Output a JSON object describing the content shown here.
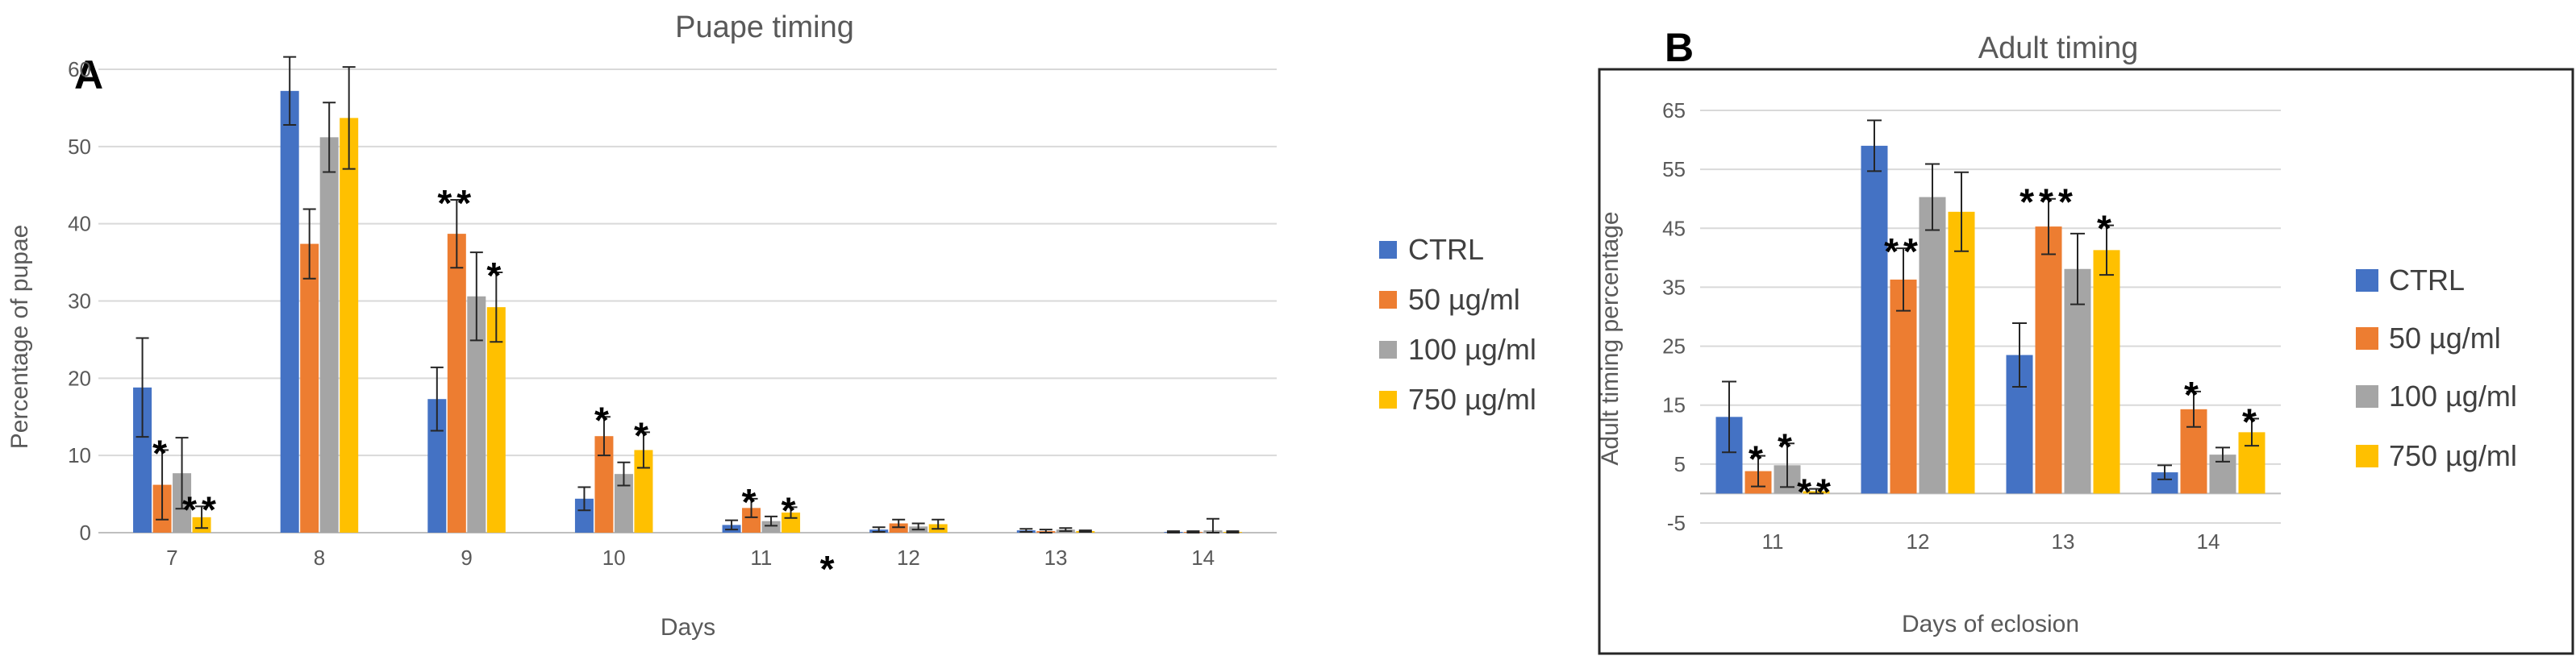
{
  "panels": {
    "a": {
      "label": "A",
      "title": "Puape timing",
      "xlabel": "Days",
      "ylabel": "Percentage of pupae"
    },
    "b": {
      "label": "B",
      "title": "Adult timing",
      "xlabel": "Days of eclosion",
      "ylabel": "Adult timing percentage"
    }
  },
  "legend": [
    "CTRL",
    "50 µg/ml",
    "100 µg/ml",
    "750 µg/ml"
  ],
  "colors": [
    "#4472C4",
    "#ED7D31",
    "#A5A5A5",
    "#FFC000"
  ],
  "chart_data": [
    {
      "type": "bar",
      "title": "Puape timing",
      "xlabel": "Days",
      "ylabel": "Percentage of pupae",
      "categories": [
        "7",
        "8",
        "9",
        "10",
        "11",
        "12",
        "13",
        "14"
      ],
      "ylim": [
        0,
        60
      ],
      "yticks": [
        0,
        10,
        20,
        30,
        40,
        50,
        60
      ],
      "grid": true,
      "legend_position": "right",
      "series": [
        {
          "name": "CTRL",
          "values": [
            18.8,
            57.2,
            17.3,
            4.4,
            1.0,
            0.4,
            0.3,
            0.1
          ],
          "errors": [
            6.4,
            4.4,
            4.1,
            1.5,
            0.6,
            0.3,
            0.2,
            0.1
          ]
        },
        {
          "name": "50 µg/ml",
          "values": [
            6.2,
            37.4,
            38.7,
            12.5,
            3.2,
            1.2,
            0.2,
            0.1
          ],
          "errors": [
            4.5,
            4.5,
            4.4,
            2.5,
            1.2,
            0.5,
            0.2,
            0.1
          ]
        },
        {
          "name": "100 µg/ml",
          "values": [
            7.7,
            51.2,
            30.6,
            7.6,
            1.5,
            0.8,
            0.4,
            0.3
          ],
          "errors": [
            4.6,
            4.5,
            5.7,
            1.5,
            0.6,
            0.4,
            0.2,
            1.5
          ]
        },
        {
          "name": "750 µg/ml",
          "values": [
            2.0,
            53.7,
            29.2,
            10.7,
            2.6,
            1.1,
            0.2,
            0.1
          ],
          "errors": [
            1.4,
            6.6,
            4.5,
            2.3,
            0.7,
            0.6,
            0.1,
            0.1
          ]
        }
      ],
      "annotations": [
        {
          "category": "7",
          "series": "50 µg/ml",
          "text": "*"
        },
        {
          "category": "7",
          "series": "750 µg/ml",
          "text": "**"
        },
        {
          "category": "9",
          "series": "50 µg/ml",
          "text": "**"
        },
        {
          "category": "9",
          "series": "750 µg/ml",
          "text": "*"
        },
        {
          "category": "10",
          "series": "50 µg/ml",
          "text": "*"
        },
        {
          "category": "10",
          "series": "750 µg/ml",
          "text": "*"
        },
        {
          "category": "11",
          "series": "50 µg/ml",
          "text": "*"
        },
        {
          "category": "11",
          "series": "750 µg/ml",
          "text": "*"
        },
        {
          "category": "11",
          "series": "750 µg/ml",
          "text": "*",
          "placement": "low"
        }
      ]
    },
    {
      "type": "bar",
      "title": "Adult timing",
      "xlabel": "Days of eclosion",
      "ylabel": "Adult timing percentage",
      "categories": [
        "11",
        "12",
        "13",
        "14"
      ],
      "ylim": [
        -5,
        65
      ],
      "yticks": [
        -5,
        5,
        15,
        25,
        35,
        45,
        55,
        65
      ],
      "grid": true,
      "legend_position": "right",
      "series": [
        {
          "name": "CTRL",
          "values": [
            13.0,
            59.0,
            23.5,
            3.6
          ],
          "errors": [
            6.0,
            4.3,
            5.4,
            1.2
          ]
        },
        {
          "name": "50 µg/ml",
          "values": [
            3.8,
            36.3,
            45.3,
            14.3
          ],
          "errors": [
            2.6,
            5.3,
            4.7,
            3.0
          ]
        },
        {
          "name": "100 µg/ml",
          "values": [
            4.8,
            50.3,
            38.1,
            6.6
          ],
          "errors": [
            3.7,
            5.6,
            6.0,
            1.2
          ]
        },
        {
          "name": "750 µg/ml",
          "values": [
            0.4,
            47.8,
            41.3,
            10.4
          ],
          "errors": [
            0.4,
            6.7,
            4.2,
            2.3
          ]
        }
      ],
      "annotations": [
        {
          "category": "11",
          "series": "50 µg/ml",
          "text": "*"
        },
        {
          "category": "11",
          "series": "100 µg/ml",
          "text": "*"
        },
        {
          "category": "11",
          "series": "750 µg/ml",
          "text": "**"
        },
        {
          "category": "12",
          "series": "50 µg/ml",
          "text": "**"
        },
        {
          "category": "13",
          "series": "50 µg/ml",
          "text": "***"
        },
        {
          "category": "13",
          "series": "750 µg/ml",
          "text": "*"
        },
        {
          "category": "14",
          "series": "50 µg/ml",
          "text": "*"
        },
        {
          "category": "14",
          "series": "750 µg/ml",
          "text": "*"
        }
      ]
    }
  ]
}
